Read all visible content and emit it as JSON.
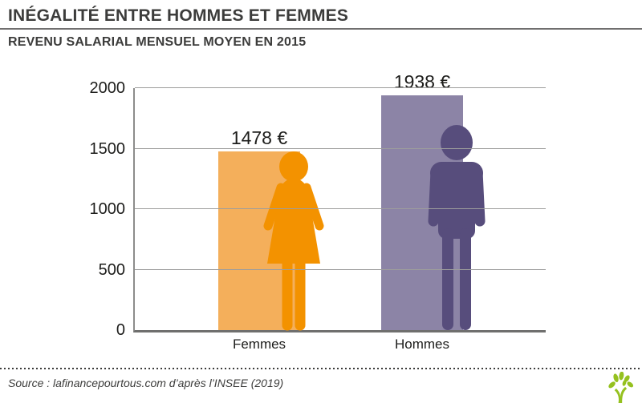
{
  "header": {
    "title": "INÉGALITÉ ENTRE HOMMES ET FEMMES",
    "subtitle": "REVENU SALARIAL MENSUEL MOYEN EN 2015"
  },
  "chart_data": {
    "type": "bar",
    "title": "Revenu salarial mensuel moyen en 2015",
    "categories": [
      "Femmes",
      "Hommes"
    ],
    "values": [
      1478,
      1938
    ],
    "value_labels": [
      "1478 €",
      "1938 €"
    ],
    "unit": "€",
    "ylim": [
      0,
      2000
    ],
    "yticks": [
      0,
      500,
      1000,
      1500,
      2000
    ],
    "grid": true,
    "legend": "none",
    "bar_colors": [
      "#f4af5b",
      "#8c84a6"
    ],
    "icon_colors": [
      "#f39200",
      "#574d7c"
    ],
    "icons": [
      "woman-icon",
      "man-icon"
    ]
  },
  "footer": {
    "source": "Source : lafinancepourtous.com d’après l’INSEE (2019)",
    "logo_color": "#95c11f"
  }
}
